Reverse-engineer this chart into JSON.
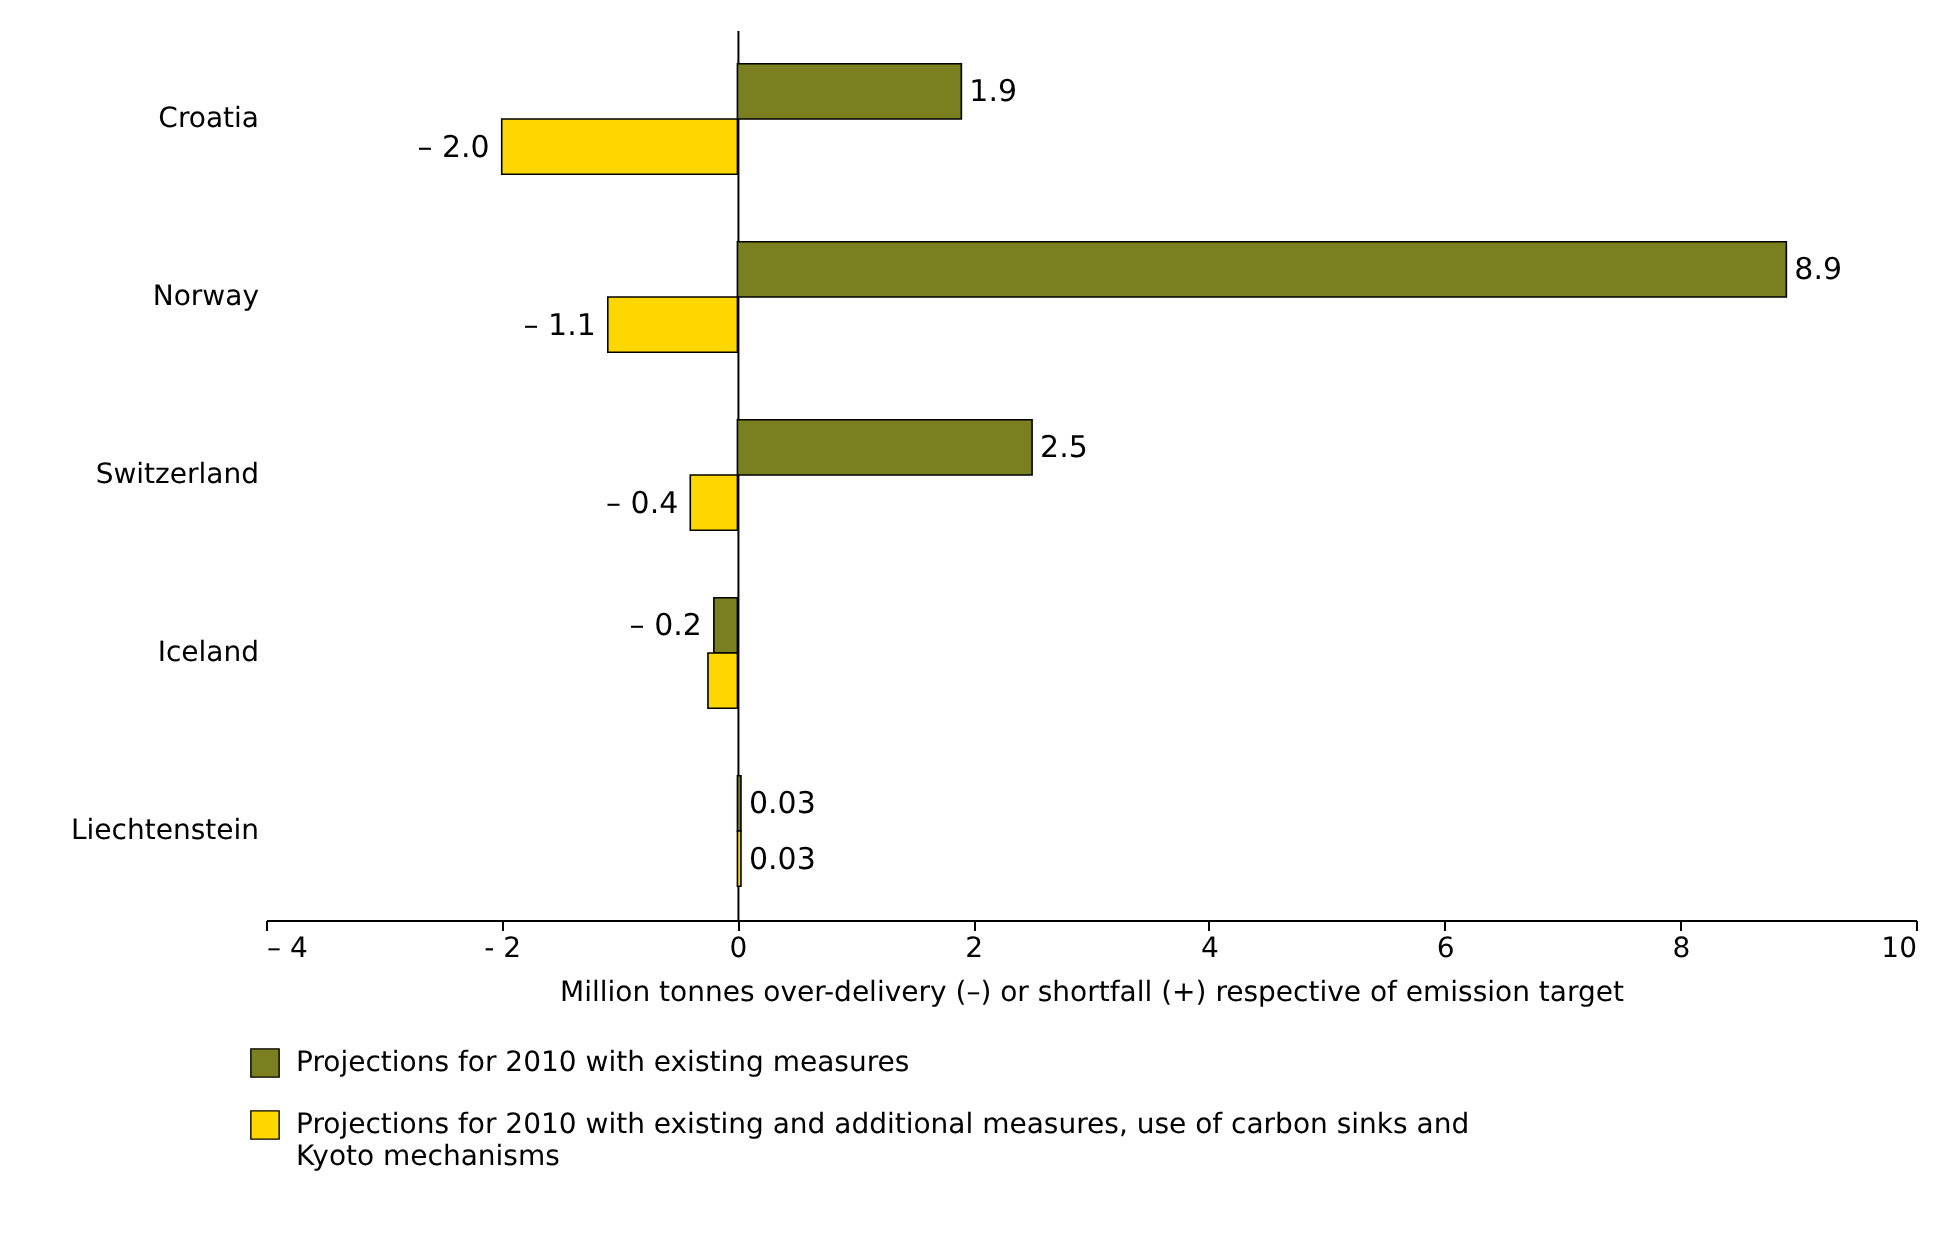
{
  "chart_data": {
    "type": "bar",
    "orientation": "horizontal",
    "categories": [
      "Croatia",
      "Norway",
      "Switzerland",
      "Iceland",
      "Liechtenstein"
    ],
    "series": [
      {
        "name": "Projections for 2010 with existing measures",
        "color": "#7a7f20",
        "values": [
          1.9,
          8.9,
          2.5,
          -0.2,
          0.03
        ],
        "value_labels": [
          "1.9",
          "8.9",
          "2.5",
          "– 0.2",
          "0.03"
        ]
      },
      {
        "name": "Projections for 2010 with existing and additional measures, use of carbon sinks and Kyoto mechanisms",
        "color": "#ffd700",
        "values": [
          -2.0,
          -1.1,
          -0.4,
          -0.25,
          0.03
        ],
        "value_labels": [
          "– 2.0",
          "– 1.1",
          "– 0.4",
          null,
          "0.03"
        ]
      }
    ],
    "xlim": [
      -4,
      10
    ],
    "xticks": [
      {
        "value": -4,
        "label": "– 4"
      },
      {
        "value": -2,
        "label": "- 2"
      },
      0,
      2,
      4,
      6,
      8,
      10
    ],
    "xlabel": "Million tonnes over-delivery (–) or shortfall (+) respective of emission target",
    "legend": "bottom"
  }
}
